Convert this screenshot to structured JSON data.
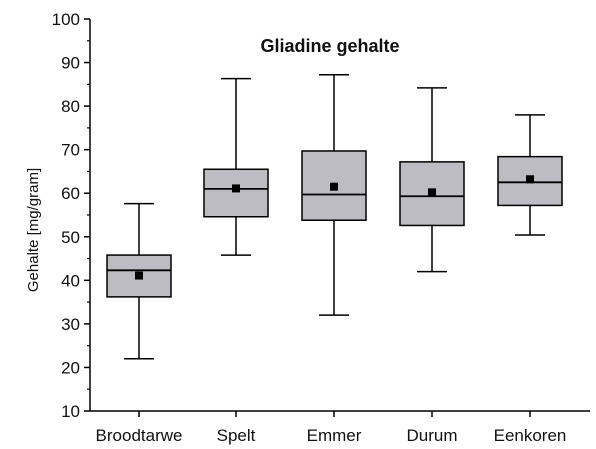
{
  "chart_data": {
    "type": "boxplot",
    "title": "Gliadine gehalte",
    "xlabel": "",
    "ylabel": "Gehalte [mg/gram]",
    "ylim": [
      10,
      100
    ],
    "yticks": [
      10,
      20,
      30,
      40,
      50,
      60,
      70,
      80,
      90,
      100
    ],
    "grid": false,
    "legend": "none",
    "categories": [
      "Broodtarwe",
      "Spelt",
      "Emmer",
      "Durum",
      "Eenkoren"
    ],
    "boxes": [
      {
        "category": "Broodtarwe",
        "min": 22,
        "q1": 36.2,
        "median": 42.3,
        "q3": 45.8,
        "max": 57.6,
        "mean": 41.1
      },
      {
        "category": "Spelt",
        "min": 45.8,
        "q1": 54.6,
        "median": 61.0,
        "q3": 65.5,
        "max": 86.3,
        "mean": 61.1
      },
      {
        "category": "Emmer",
        "min": 32,
        "q1": 53.8,
        "median": 59.7,
        "q3": 69.7,
        "max": 87.2,
        "mean": 61.5
      },
      {
        "category": "Durum",
        "min": 42,
        "q1": 52.6,
        "median": 59.3,
        "q3": 67.2,
        "max": 84.2,
        "mean": 60.2
      },
      {
        "category": "Eenkoren",
        "min": 50.4,
        "q1": 57.2,
        "median": 62.5,
        "q3": 68.4,
        "max": 78.0,
        "mean": 63.2
      }
    ],
    "colors": {
      "box_fill": "#bdbcc2",
      "stroke": "#000000"
    }
  }
}
